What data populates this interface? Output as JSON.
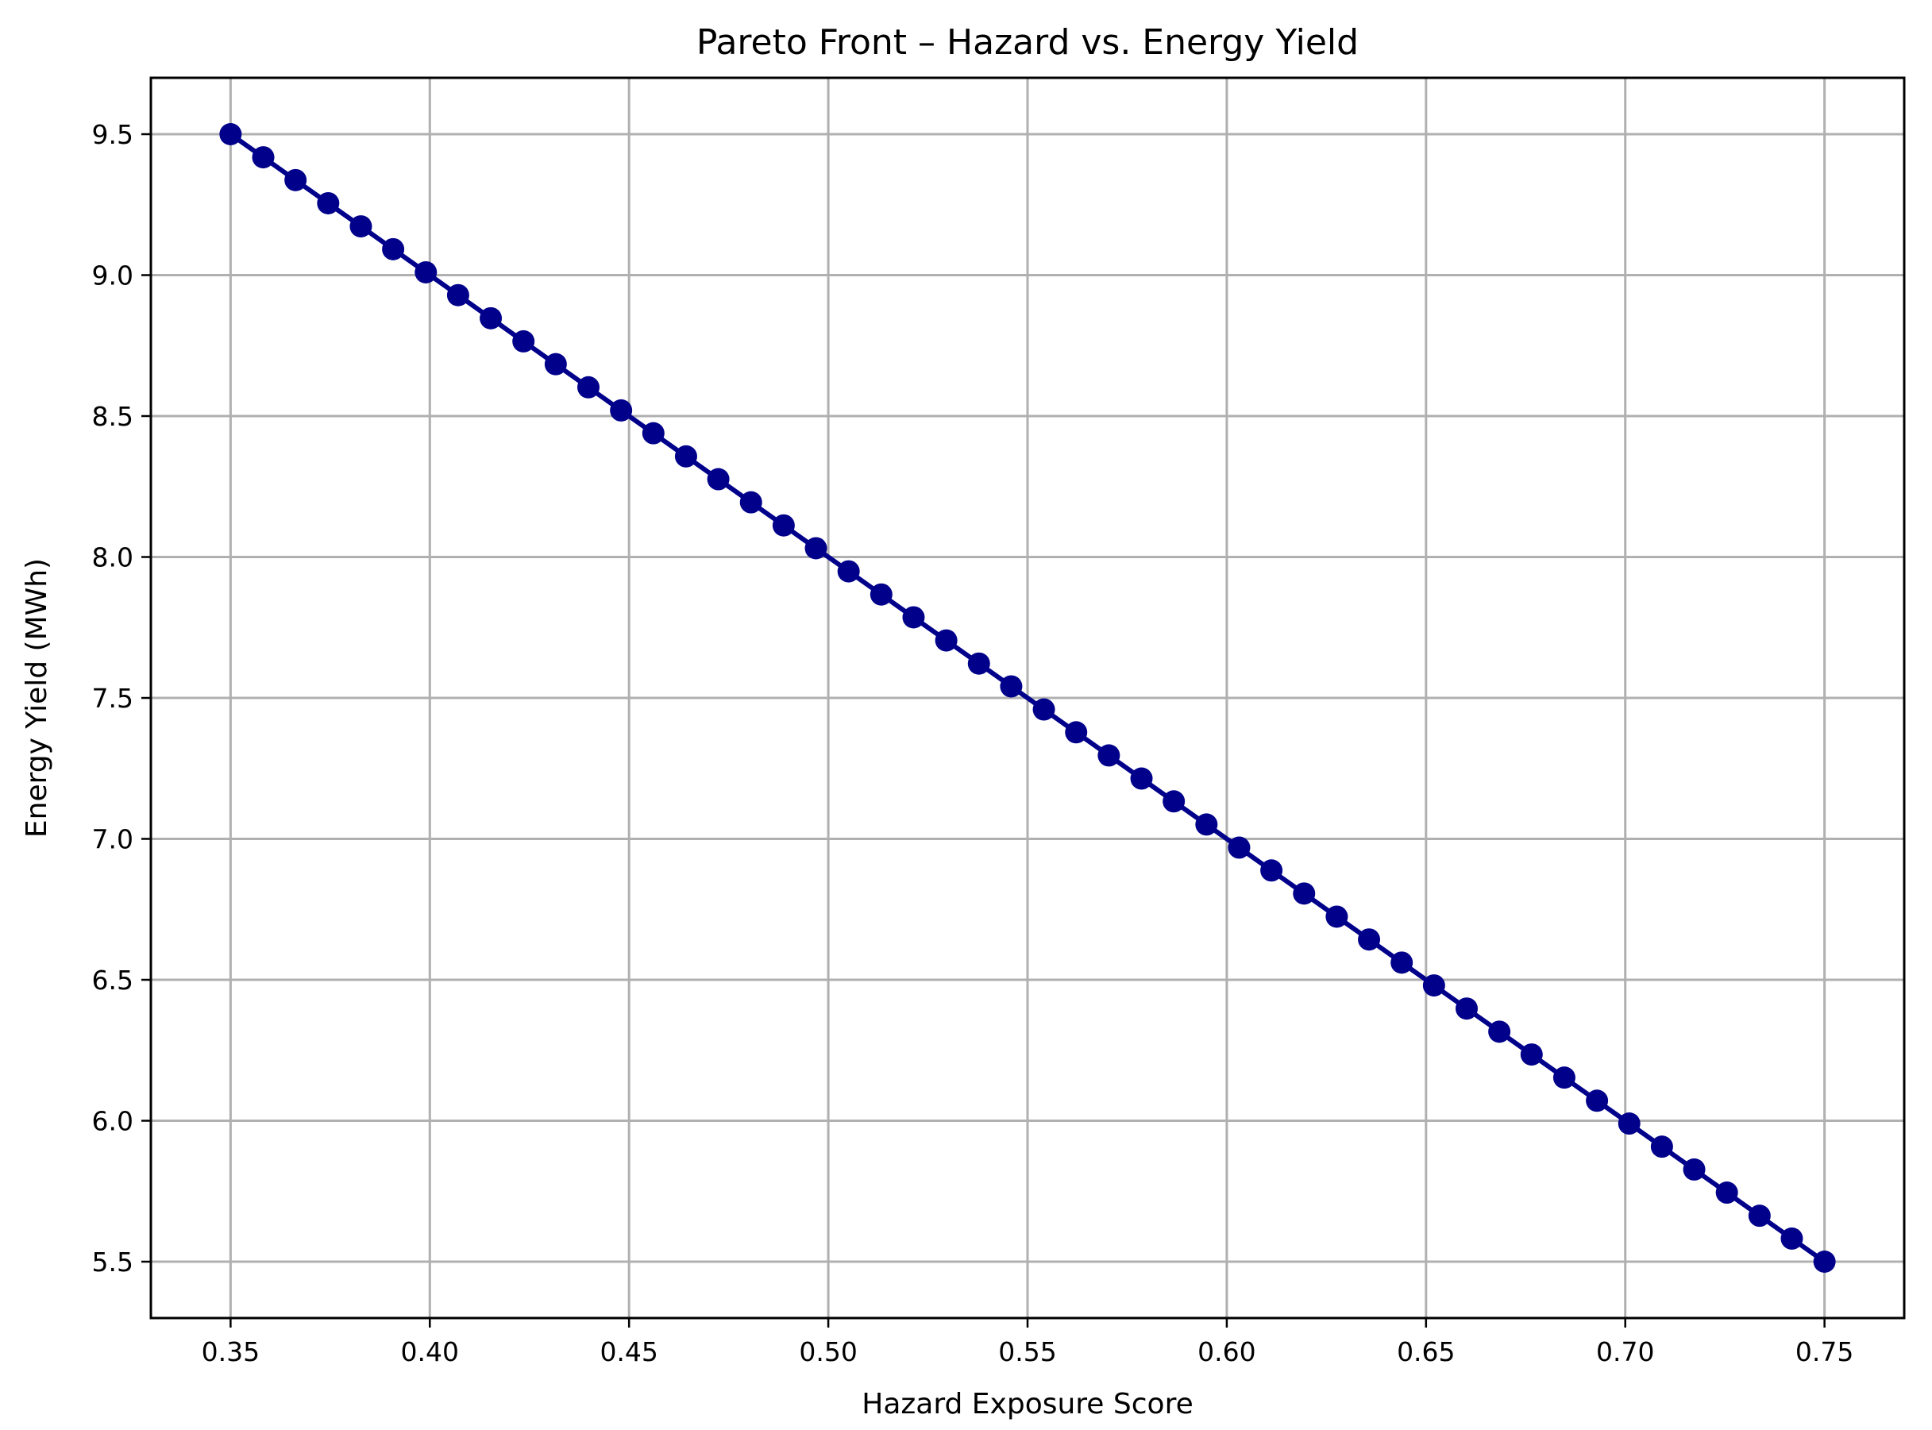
{
  "chart_data": {
    "type": "line",
    "title": "Pareto Front – Hazard vs. Energy Yield",
    "xlabel": "Hazard Exposure Score",
    "ylabel": "Energy Yield (MWh)",
    "xlim": [
      0.33,
      0.77
    ],
    "ylim": [
      5.3,
      9.7
    ],
    "xticks": [
      0.35,
      0.4,
      0.45,
      0.5,
      0.55,
      0.6,
      0.65,
      0.7,
      0.75
    ],
    "xtick_labels": [
      "0.35",
      "0.40",
      "0.45",
      "0.50",
      "0.55",
      "0.60",
      "0.65",
      "0.70",
      "0.75"
    ],
    "yticks": [
      5.5,
      6.0,
      6.5,
      7.0,
      7.5,
      8.0,
      8.5,
      9.0,
      9.5
    ],
    "ytick_labels": [
      "5.5",
      "6.0",
      "6.5",
      "7.0",
      "7.5",
      "8.0",
      "8.5",
      "9.0",
      "9.5"
    ],
    "grid": true,
    "legend": "none",
    "colors": {
      "line": "#00008b",
      "marker": "#00008b",
      "grid": "#b0b0b0",
      "axes": "#000000"
    },
    "series": [
      {
        "x": [
          0.35,
          0.3582,
          0.3663,
          0.3745,
          0.3827,
          0.3908,
          0.399,
          0.4071,
          0.4153,
          0.4235,
          0.4316,
          0.4398,
          0.448,
          0.4561,
          0.4643,
          0.4724,
          0.4806,
          0.4888,
          0.4969,
          0.5051,
          0.5133,
          0.5214,
          0.5296,
          0.5378,
          0.5459,
          0.5541,
          0.5622,
          0.5704,
          0.5786,
          0.5867,
          0.5949,
          0.6031,
          0.6112,
          0.6194,
          0.6276,
          0.6357,
          0.6439,
          0.652,
          0.6602,
          0.6684,
          0.6765,
          0.6847,
          0.6929,
          0.701,
          0.7092,
          0.7173,
          0.7255,
          0.7337,
          0.7418,
          0.75
        ],
        "y": [
          9.5,
          9.418,
          9.337,
          9.255,
          9.173,
          9.092,
          9.01,
          8.929,
          8.847,
          8.765,
          8.684,
          8.602,
          8.52,
          8.439,
          8.357,
          8.276,
          8.194,
          8.112,
          8.031,
          7.949,
          7.867,
          7.786,
          7.704,
          7.622,
          7.541,
          7.459,
          7.378,
          7.296,
          7.214,
          7.133,
          7.051,
          6.969,
          6.888,
          6.806,
          6.724,
          6.643,
          6.561,
          6.48,
          6.398,
          6.316,
          6.235,
          6.153,
          6.071,
          5.99,
          5.908,
          5.827,
          5.745,
          5.663,
          5.582,
          5.5
        ]
      }
    ]
  }
}
